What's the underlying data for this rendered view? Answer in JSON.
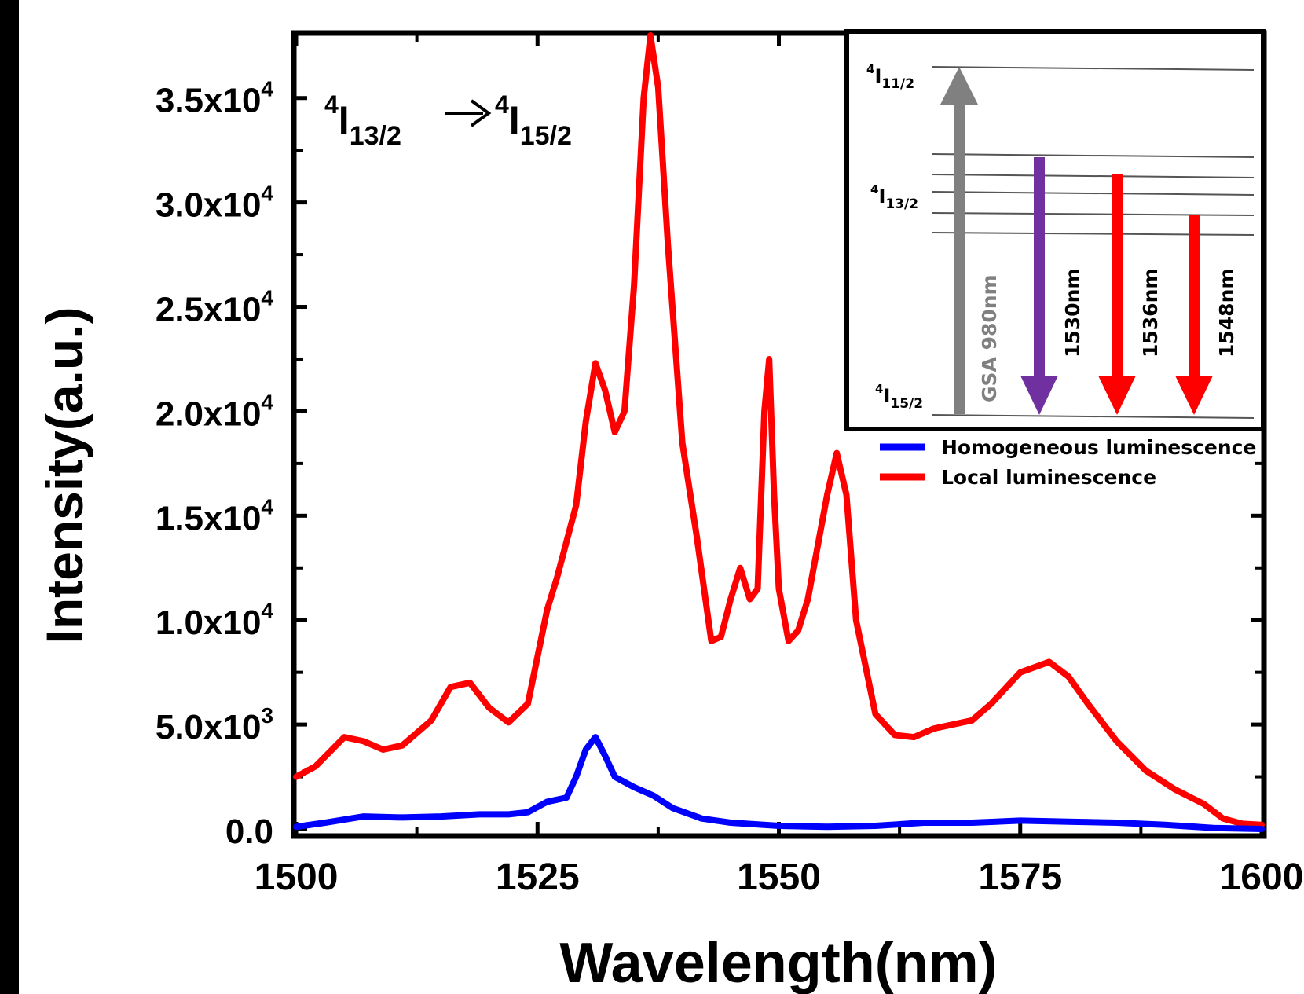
{
  "chart_data": {
    "type": "line",
    "xlabel": "Wavelength(nm)",
    "ylabel": "Intensity(a.u.)",
    "xlim": [
      1500,
      1600
    ],
    "ylim": [
      0,
      38000
    ],
    "x_ticks": [
      "1500",
      "1525",
      "1550",
      "1575",
      "1600"
    ],
    "y_ticks": [
      {
        "value": 0,
        "mantissa": "0.0",
        "exp": ""
      },
      {
        "value": 5000,
        "mantissa": "5.0x10",
        "exp": "3"
      },
      {
        "value": 10000,
        "mantissa": "1.0x10",
        "exp": "4"
      },
      {
        "value": 15000,
        "mantissa": "1.5x10",
        "exp": "4"
      },
      {
        "value": 20000,
        "mantissa": "2.0x10",
        "exp": "4"
      },
      {
        "value": 25000,
        "mantissa": "2.5x10",
        "exp": "4"
      },
      {
        "value": 30000,
        "mantissa": "3.0x10",
        "exp": "4"
      },
      {
        "value": 35000,
        "mantissa": "3.5x10",
        "exp": "4"
      }
    ],
    "transition_label": {
      "upper": "13/2",
      "lower": "15/2",
      "sup": "4",
      "base": "I"
    },
    "series": [
      {
        "name": "Local luminescence",
        "color": "#ff0000",
        "points": [
          [
            1500,
            2500
          ],
          [
            1502,
            3000
          ],
          [
            1505,
            4400
          ],
          [
            1507,
            4200
          ],
          [
            1509,
            3800
          ],
          [
            1511,
            4000
          ],
          [
            1514,
            5200
          ],
          [
            1516,
            6800
          ],
          [
            1518,
            7000
          ],
          [
            1520,
            5800
          ],
          [
            1522,
            5100
          ],
          [
            1524,
            6000
          ],
          [
            1526,
            10500
          ],
          [
            1527,
            12000
          ],
          [
            1529,
            15500
          ],
          [
            1530,
            19500
          ],
          [
            1531,
            22300
          ],
          [
            1532,
            21000
          ],
          [
            1533,
            19000
          ],
          [
            1534,
            20000
          ],
          [
            1535,
            26000
          ],
          [
            1536,
            35000
          ],
          [
            1536.7,
            38000
          ],
          [
            1537.5,
            35500
          ],
          [
            1538.5,
            28000
          ],
          [
            1540,
            18500
          ],
          [
            1541.5,
            14000
          ],
          [
            1543,
            9000
          ],
          [
            1544,
            9200
          ],
          [
            1545,
            11000
          ],
          [
            1546,
            12500
          ],
          [
            1547,
            11000
          ],
          [
            1547.8,
            11500
          ],
          [
            1548.5,
            20000
          ],
          [
            1549,
            22500
          ],
          [
            1549.5,
            16000
          ],
          [
            1550,
            11500
          ],
          [
            1551,
            9000
          ],
          [
            1552,
            9500
          ],
          [
            1553,
            11000
          ],
          [
            1555,
            16000
          ],
          [
            1556,
            18000
          ],
          [
            1557,
            16000
          ],
          [
            1558,
            10000
          ],
          [
            1560,
            5500
          ],
          [
            1562,
            4500
          ],
          [
            1564,
            4400
          ],
          [
            1566,
            4800
          ],
          [
            1570,
            5200
          ],
          [
            1572,
            6000
          ],
          [
            1575,
            7500
          ],
          [
            1578,
            8000
          ],
          [
            1580,
            7300
          ],
          [
            1582,
            6000
          ],
          [
            1585,
            4200
          ],
          [
            1588,
            2800
          ],
          [
            1591,
            1900
          ],
          [
            1594,
            1200
          ],
          [
            1596,
            500
          ],
          [
            1598,
            250
          ],
          [
            1600,
            200
          ]
        ]
      },
      {
        "name": "Homogeneous luminescence",
        "color": "#0000ff",
        "points": [
          [
            1500,
            100
          ],
          [
            1503,
            300
          ],
          [
            1507,
            600
          ],
          [
            1511,
            550
          ],
          [
            1515,
            600
          ],
          [
            1519,
            700
          ],
          [
            1522,
            700
          ],
          [
            1524,
            800
          ],
          [
            1526,
            1300
          ],
          [
            1527,
            1400
          ],
          [
            1528,
            1500
          ],
          [
            1529,
            2500
          ],
          [
            1530,
            3800
          ],
          [
            1531,
            4400
          ],
          [
            1532,
            3500
          ],
          [
            1533,
            2500
          ],
          [
            1535,
            2000
          ],
          [
            1537,
            1600
          ],
          [
            1539,
            1000
          ],
          [
            1542,
            500
          ],
          [
            1545,
            300
          ],
          [
            1550,
            150
          ],
          [
            1555,
            100
          ],
          [
            1560,
            150
          ],
          [
            1565,
            300
          ],
          [
            1570,
            300
          ],
          [
            1575,
            400
          ],
          [
            1580,
            350
          ],
          [
            1585,
            300
          ],
          [
            1590,
            200
          ],
          [
            1595,
            50
          ],
          [
            1600,
            0
          ]
        ]
      }
    ],
    "legend_position": "inside, below the inset",
    "inset": {
      "levels": [
        {
          "sup": "4",
          "base": "I",
          "sub": "11/2"
        },
        {
          "sup": "4",
          "base": "I",
          "sub": "13/2"
        },
        {
          "sup": "4",
          "base": "I",
          "sub": "15/2"
        }
      ],
      "arrows": [
        {
          "label": "GSA 980nm",
          "color": "#808080",
          "direction": "up"
        },
        {
          "label": "1530nm",
          "color": "#7030a0",
          "direction": "down"
        },
        {
          "label": "1536nm",
          "color": "#ff0000",
          "direction": "down"
        },
        {
          "label": "1548nm",
          "color": "#ff0000",
          "direction": "down"
        }
      ]
    }
  }
}
